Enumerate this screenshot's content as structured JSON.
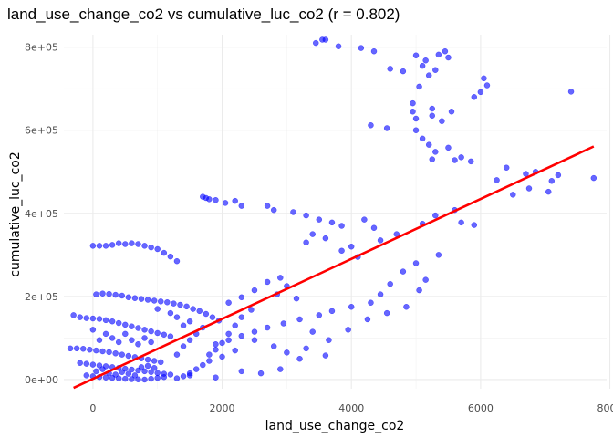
{
  "chart_data": {
    "type": "scatter",
    "title": "land_use_change_co2 vs cumulative_luc_co2 (r = 0.802)",
    "xlabel": "land_use_change_co2",
    "ylabel": "cumulative_luc_co2",
    "xlim": [
      -450,
      7950
    ],
    "ylim": [
      -22000,
      830000
    ],
    "x_ticks": [
      0,
      2000,
      4000,
      6000,
      8000
    ],
    "x_tick_labels": [
      "0",
      "2000",
      "4000",
      "6000",
      "8000"
    ],
    "y_ticks": [
      0,
      200000,
      400000,
      600000,
      800000
    ],
    "y_tick_labels": [
      "0e+00",
      "2e+05",
      "4e+05",
      "6e+05",
      "8e+05"
    ],
    "grid": true,
    "point_color": "#0000ff",
    "fit_color": "#ff0000",
    "fit_line": {
      "x": [
        -300,
        7750
      ],
      "y": [
        -20000,
        561000
      ]
    },
    "points": [
      [
        3450,
        810000
      ],
      [
        3550,
        818000
      ],
      [
        3600,
        818000
      ],
      [
        3800,
        802000
      ],
      [
        4150,
        798000
      ],
      [
        4350,
        790000
      ],
      [
        5000,
        780000
      ],
      [
        5150,
        768000
      ],
      [
        5350,
        782000
      ],
      [
        5450,
        790000
      ],
      [
        5500,
        775000
      ],
      [
        5100,
        755000
      ],
      [
        4800,
        742000
      ],
      [
        4600,
        748000
      ],
      [
        5300,
        745000
      ],
      [
        5200,
        732000
      ],
      [
        5050,
        705000
      ],
      [
        6050,
        725000
      ],
      [
        6100,
        708000
      ],
      [
        6000,
        692000
      ],
      [
        5900,
        680000
      ],
      [
        7400,
        693000
      ],
      [
        4950,
        665000
      ],
      [
        4950,
        645000
      ],
      [
        5000,
        628000
      ],
      [
        5250,
        652000
      ],
      [
        5250,
        635000
      ],
      [
        5550,
        645000
      ],
      [
        5400,
        622000
      ],
      [
        4300,
        612000
      ],
      [
        4550,
        605000
      ],
      [
        5000,
        600000
      ],
      [
        5100,
        580000
      ],
      [
        5200,
        565000
      ],
      [
        5300,
        548000
      ],
      [
        5500,
        558000
      ],
      [
        5600,
        528000
      ],
      [
        5700,
        535000
      ],
      [
        5850,
        525000
      ],
      [
        6400,
        510000
      ],
      [
        6700,
        495000
      ],
      [
        6850,
        500000
      ],
      [
        7100,
        478000
      ],
      [
        7200,
        492000
      ],
      [
        7050,
        452000
      ],
      [
        7750,
        485000
      ],
      [
        6250,
        480000
      ],
      [
        6500,
        445000
      ],
      [
        6750,
        460000
      ],
      [
        5250,
        530000
      ],
      [
        1700,
        440000
      ],
      [
        1750,
        437000
      ],
      [
        1800,
        434000
      ],
      [
        1900,
        432000
      ],
      [
        2050,
        425000
      ],
      [
        2200,
        430000
      ],
      [
        2300,
        418000
      ],
      [
        2700,
        418000
      ],
      [
        2800,
        408000
      ],
      [
        3100,
        403000
      ],
      [
        3300,
        395000
      ],
      [
        3500,
        385000
      ],
      [
        3700,
        378000
      ],
      [
        3850,
        370000
      ],
      [
        4200,
        385000
      ],
      [
        4350,
        365000
      ],
      [
        3400,
        350000
      ],
      [
        3600,
        340000
      ],
      [
        3300,
        330000
      ],
      [
        3850,
        310000
      ],
      [
        4000,
        320000
      ],
      [
        4100,
        295000
      ],
      [
        4450,
        335000
      ],
      [
        4700,
        350000
      ],
      [
        5100,
        375000
      ],
      [
        5300,
        395000
      ],
      [
        5600,
        408000
      ],
      [
        5700,
        378000
      ],
      [
        5900,
        372000
      ],
      [
        5350,
        300000
      ],
      [
        5000,
        280000
      ],
      [
        4800,
        260000
      ],
      [
        4600,
        230000
      ],
      [
        4450,
        205000
      ],
      [
        4300,
        185000
      ],
      [
        4000,
        175000
      ],
      [
        3700,
        165000
      ],
      [
        3500,
        155000
      ],
      [
        3200,
        145000
      ],
      [
        2950,
        135000
      ],
      [
        2700,
        125000
      ],
      [
        2500,
        115000
      ],
      [
        2300,
        105000
      ],
      [
        2100,
        95000
      ],
      [
        1900,
        85000
      ],
      [
        1800,
        45000
      ],
      [
        2000,
        55000
      ],
      [
        2200,
        70000
      ],
      [
        2500,
        95000
      ],
      [
        2800,
        80000
      ],
      [
        3000,
        65000
      ],
      [
        3200,
        50000
      ],
      [
        2900,
        25000
      ],
      [
        2600,
        15000
      ],
      [
        2300,
        20000
      ],
      [
        1900,
        5000
      ],
      [
        1500,
        10000
      ],
      [
        3000,
        225000
      ],
      [
        2900,
        245000
      ],
      [
        2850,
        205000
      ],
      [
        3150,
        195000
      ],
      [
        2700,
        235000
      ],
      [
        2500,
        215000
      ],
      [
        2300,
        198000
      ],
      [
        2100,
        185000
      ],
      [
        3400,
        115000
      ],
      [
        3650,
        95000
      ],
      [
        3950,
        120000
      ],
      [
        4250,
        145000
      ],
      [
        4550,
        160000
      ],
      [
        4850,
        175000
      ],
      [
        5050,
        215000
      ],
      [
        5150,
        240000
      ],
      [
        3300,
        75000
      ],
      [
        3600,
        58000
      ],
      [
        0,
        322000
      ],
      [
        100,
        322000
      ],
      [
        200,
        322000
      ],
      [
        300,
        324000
      ],
      [
        400,
        328000
      ],
      [
        500,
        326000
      ],
      [
        600,
        328000
      ],
      [
        700,
        326000
      ],
      [
        800,
        322000
      ],
      [
        900,
        318000
      ],
      [
        1000,
        314000
      ],
      [
        1100,
        305000
      ],
      [
        1200,
        296000
      ],
      [
        1300,
        285000
      ],
      [
        50,
        205000
      ],
      [
        150,
        207000
      ],
      [
        250,
        206000
      ],
      [
        350,
        204000
      ],
      [
        450,
        202000
      ],
      [
        550,
        198000
      ],
      [
        650,
        196000
      ],
      [
        750,
        194000
      ],
      [
        850,
        192000
      ],
      [
        950,
        190000
      ],
      [
        1050,
        188000
      ],
      [
        1150,
        186000
      ],
      [
        1250,
        183000
      ],
      [
        1350,
        180000
      ],
      [
        1450,
        176000
      ],
      [
        1550,
        170000
      ],
      [
        1650,
        165000
      ],
      [
        1750,
        158000
      ],
      [
        1850,
        150000
      ],
      [
        1950,
        142000
      ],
      [
        -300,
        155000
      ],
      [
        -200,
        150000
      ],
      [
        -100,
        148000
      ],
      [
        0,
        147000
      ],
      [
        100,
        146000
      ],
      [
        200,
        143000
      ],
      [
        300,
        140000
      ],
      [
        400,
        136000
      ],
      [
        500,
        132000
      ],
      [
        600,
        128000
      ],
      [
        700,
        124000
      ],
      [
        800,
        120000
      ],
      [
        900,
        116000
      ],
      [
        1000,
        112000
      ],
      [
        1100,
        108000
      ],
      [
        1200,
        104000
      ],
      [
        -350,
        75000
      ],
      [
        -250,
        75000
      ],
      [
        -150,
        74000
      ],
      [
        -50,
        72000
      ],
      [
        50,
        70000
      ],
      [
        150,
        68000
      ],
      [
        250,
        66000
      ],
      [
        350,
        63000
      ],
      [
        450,
        60000
      ],
      [
        550,
        57000
      ],
      [
        650,
        54000
      ],
      [
        750,
        51000
      ],
      [
        850,
        48000
      ],
      [
        950,
        45000
      ],
      [
        1050,
        42000
      ],
      [
        -200,
        40000
      ],
      [
        -100,
        38000
      ],
      [
        0,
        36000
      ],
      [
        100,
        34000
      ],
      [
        200,
        32000
      ],
      [
        300,
        30000
      ],
      [
        400,
        28000
      ],
      [
        500,
        26000
      ],
      [
        600,
        24000
      ],
      [
        700,
        22000
      ],
      [
        800,
        20000
      ],
      [
        900,
        18000
      ],
      [
        1000,
        16000
      ],
      [
        1100,
        14000
      ],
      [
        1200,
        12000
      ],
      [
        -100,
        10000
      ],
      [
        0,
        8000
      ],
      [
        100,
        6000
      ],
      [
        200,
        5000
      ],
      [
        300,
        4000
      ],
      [
        400,
        3000
      ],
      [
        500,
        2000
      ],
      [
        600,
        1000
      ],
      [
        700,
        500
      ],
      [
        800,
        0
      ],
      [
        900,
        2000
      ],
      [
        1000,
        4000
      ],
      [
        1100,
        6000
      ],
      [
        1300,
        3000
      ],
      [
        1400,
        8000
      ],
      [
        1500,
        15000
      ],
      [
        1600,
        25000
      ],
      [
        1700,
        35000
      ],
      [
        1800,
        60000
      ],
      [
        1900,
        72000
      ],
      [
        2000,
        88000
      ],
      [
        2100,
        110000
      ],
      [
        2200,
        130000
      ],
      [
        2300,
        150000
      ],
      [
        2450,
        168000
      ],
      [
        1300,
        60000
      ],
      [
        1400,
        80000
      ],
      [
        1500,
        95000
      ],
      [
        1600,
        110000
      ],
      [
        1700,
        125000
      ],
      [
        1400,
        130000
      ],
      [
        1500,
        140000
      ],
      [
        1300,
        150000
      ],
      [
        1200,
        160000
      ],
      [
        1000,
        170000
      ],
      [
        900,
        90000
      ],
      [
        800,
        100000
      ],
      [
        700,
        85000
      ],
      [
        600,
        95000
      ],
      [
        500,
        110000
      ],
      [
        400,
        90000
      ],
      [
        300,
        100000
      ],
      [
        200,
        110000
      ],
      [
        100,
        95000
      ],
      [
        0,
        120000
      ],
      [
        50,
        20000
      ],
      [
        150,
        25000
      ],
      [
        250,
        15000
      ],
      [
        350,
        12000
      ],
      [
        450,
        18000
      ],
      [
        550,
        14000
      ],
      [
        650,
        10000
      ],
      [
        750,
        30000
      ],
      [
        850,
        33000
      ],
      [
        950,
        28000
      ]
    ]
  }
}
